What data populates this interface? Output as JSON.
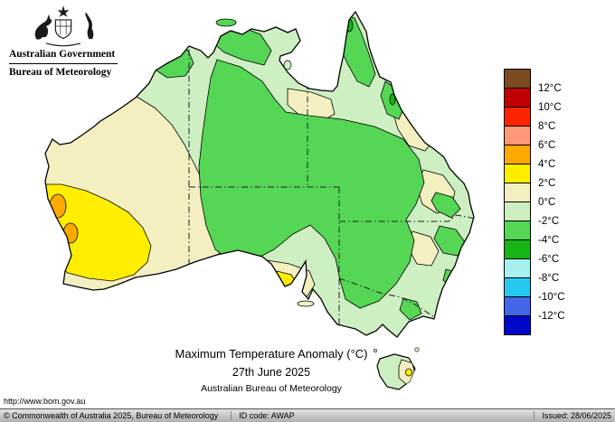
{
  "header": {
    "government": "Australian Government",
    "bureau": "Bureau of Meteorology"
  },
  "titles": {
    "main": "Maximum Temperature Anomaly (°C)",
    "date": "27th June 2025",
    "source": "Australian Bureau of Meteorology",
    "url": "http://www.bom.gov.au"
  },
  "legend": {
    "labels": [
      "12°C",
      "10°C",
      "8°C",
      "6°C",
      "4°C",
      "2°C",
      "0°C",
      "-2°C",
      "-4°C",
      "-6°C",
      "-8°C",
      "-10°C",
      "-12°C"
    ],
    "colors": [
      "#7A4A21",
      "#C00000",
      "#FF2400",
      "#FF9878",
      "#FFA800",
      "#FFEE00",
      "#F4EFC1",
      "#CDEFC2",
      "#55D655",
      "#17B417",
      "#A8EFEF",
      "#27C8F0",
      "#4466E8",
      "#0008C8"
    ]
  },
  "footer": {
    "copyright": "© Commonwealth of Australia 2025, Bureau of Meteorology",
    "id_code": "ID code: AWAP",
    "issued": "Issued: 28/06/2025"
  }
}
